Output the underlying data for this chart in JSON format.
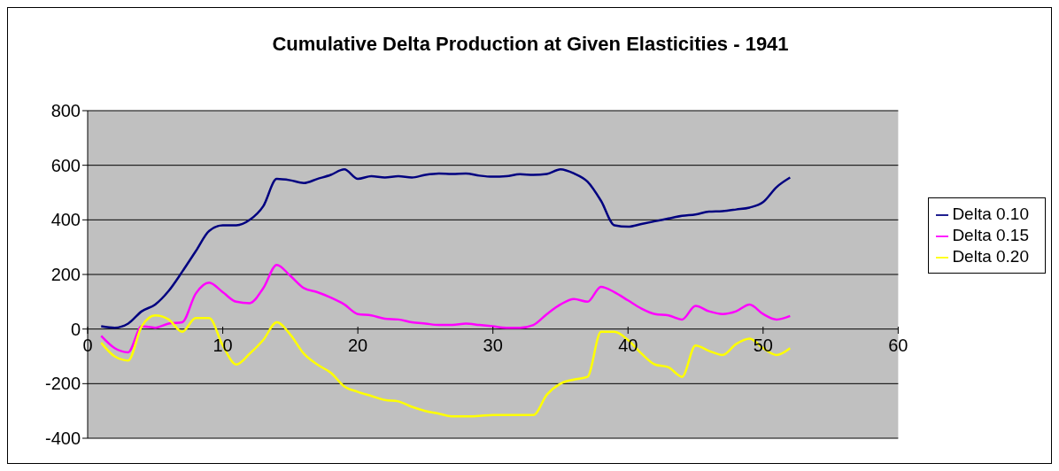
{
  "chart_data": {
    "type": "line",
    "title": "Cumulative Delta Production at Given Elasticities - 1941",
    "x": [
      1,
      2,
      3,
      4,
      5,
      6,
      7,
      8,
      9,
      10,
      11,
      12,
      13,
      14,
      15,
      16,
      17,
      18,
      19,
      20,
      21,
      22,
      23,
      24,
      25,
      26,
      27,
      28,
      29,
      30,
      31,
      32,
      33,
      34,
      35,
      36,
      37,
      38,
      39,
      40,
      41,
      42,
      43,
      44,
      45,
      46,
      47,
      48,
      49,
      50,
      51,
      52
    ],
    "series": [
      {
        "name": "Delta 0.10",
        "color": "#000080",
        "values": [
          10,
          5,
          20,
          65,
          90,
          140,
          210,
          285,
          360,
          380,
          380,
          400,
          450,
          550,
          545,
          535,
          550,
          565,
          585,
          550,
          560,
          555,
          560,
          555,
          565,
          570,
          568,
          570,
          562,
          558,
          560,
          567,
          565,
          568,
          585,
          570,
          540,
          470,
          380,
          375,
          385,
          395,
          405,
          415,
          420,
          430,
          432,
          438,
          445,
          465,
          520,
          555
        ]
      },
      {
        "name": "Delta 0.15",
        "color": "#ff00ff",
        "values": [
          -25,
          -70,
          -85,
          10,
          5,
          20,
          25,
          130,
          170,
          135,
          100,
          95,
          150,
          235,
          195,
          150,
          135,
          115,
          90,
          55,
          50,
          38,
          35,
          25,
          20,
          15,
          15,
          20,
          15,
          10,
          5,
          5,
          15,
          55,
          90,
          110,
          100,
          155,
          135,
          105,
          75,
          55,
          50,
          35,
          85,
          65,
          55,
          65,
          90,
          55,
          35,
          48
        ]
      },
      {
        "name": "Delta 0.20",
        "color": "#ffff00",
        "values": [
          -50,
          -100,
          -115,
          10,
          50,
          35,
          -10,
          40,
          40,
          -60,
          -130,
          -90,
          -40,
          25,
          -20,
          -90,
          -130,
          -160,
          -210,
          -230,
          -245,
          -260,
          -265,
          -285,
          -300,
          -310,
          -320,
          -320,
          -318,
          -315,
          -315,
          -315,
          -315,
          -240,
          -200,
          -185,
          -175,
          -10,
          -10,
          -40,
          -90,
          -130,
          -140,
          -175,
          -60,
          -80,
          -95,
          -55,
          -35,
          -70,
          -95,
          -70
        ]
      }
    ],
    "xlim": [
      0,
      60
    ],
    "xticks": [
      0,
      10,
      20,
      30,
      40,
      50,
      60
    ],
    "ylim": [
      -400,
      800
    ],
    "yticks": [
      -400,
      -200,
      0,
      200,
      400,
      600,
      800
    ],
    "grid": "y",
    "legend": "right",
    "marker": "none",
    "line_style": "solid"
  }
}
